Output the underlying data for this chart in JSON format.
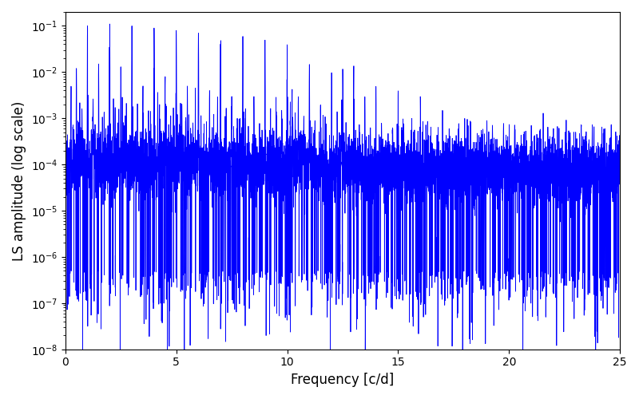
{
  "title": "",
  "xlabel": "Frequency [c/d]",
  "ylabel": "LS amplitude (log scale)",
  "xlim": [
    0,
    25
  ],
  "ylim": [
    1e-08,
    0.2
  ],
  "yticks": [
    1e-08,
    1e-07,
    1e-06,
    1e-05,
    0.0001,
    0.001,
    0.01,
    0.1
  ],
  "line_color": "#0000ff",
  "line_width": 0.6,
  "background_color": "#ffffff",
  "figsize": [
    8.0,
    5.0
  ],
  "dpi": 100,
  "freq_min": 0.0,
  "freq_max": 25.0,
  "n_points": 8000,
  "seed": 42
}
